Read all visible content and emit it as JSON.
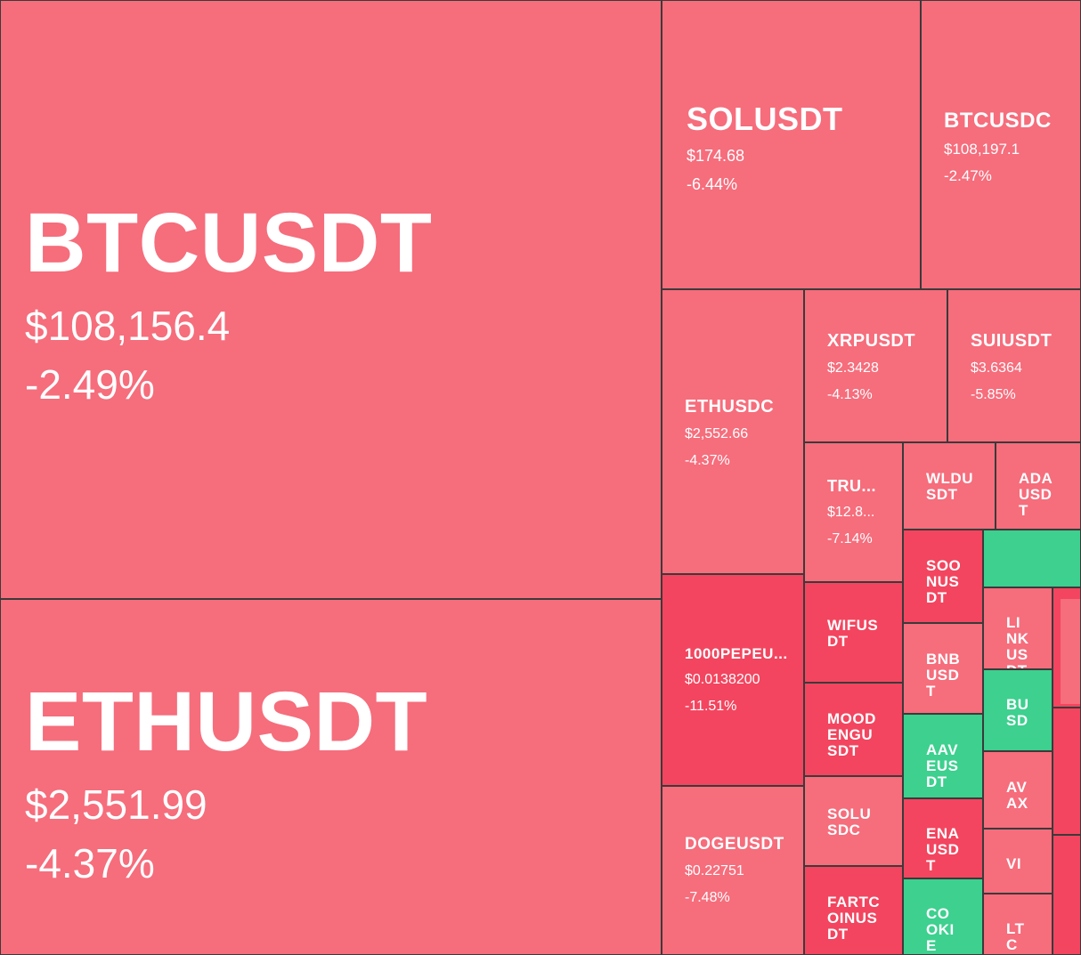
{
  "tiles": [
    {
      "symbol": "BTCUSDT",
      "price": "$108,156.4",
      "change": "-2.49%",
      "color": "#f66d7c"
    },
    {
      "symbol": "ETHUSDT",
      "price": "$2,551.99",
      "change": "-4.37%",
      "color": "#f66d7c"
    },
    {
      "symbol": "SOLUSDT",
      "price": "$174.68",
      "change": "-6.44%",
      "color": "#f66d7c"
    },
    {
      "symbol": "BTCUSDC",
      "price": "$108,197.1",
      "change": "-2.47%",
      "color": "#f66d7c"
    },
    {
      "symbol": "ETHUSDC",
      "price": "$2,552.66",
      "change": "-4.37%",
      "color": "#f66d7c"
    },
    {
      "symbol": "XRPUSDT",
      "price": "$2.3428",
      "change": "-4.13%",
      "color": "#f66d7c"
    },
    {
      "symbol": "SUIUSDT",
      "price": "$3.6364",
      "change": "-5.85%",
      "color": "#f66d7c"
    },
    {
      "symbol": "TRU...",
      "price": "$12.8...",
      "change": "-7.14%",
      "color": "#f66d7c"
    },
    {
      "symbol": "WLDUSDT",
      "color": "#f66d7c"
    },
    {
      "symbol": "ADAUSDT",
      "color": "#f66d7c"
    },
    {
      "symbol": "1000PEPEU...",
      "price": "$0.0138200",
      "change": "-11.51%",
      "color": "#f3455f"
    },
    {
      "symbol": "DOGEUSDT",
      "price": "$0.22751",
      "change": "-7.48%",
      "color": "#f66d7c"
    },
    {
      "symbol": "WIFUSDT",
      "color": "#f3455f"
    },
    {
      "symbol": "MOODENGUSDT",
      "color": "#f3455f"
    },
    {
      "symbol": "SOLUSDC",
      "color": "#f66d7c"
    },
    {
      "symbol": "FARTCOINUSDT",
      "color": "#f3455f"
    },
    {
      "symbol": "SOONUSDT",
      "color": "#f3455f"
    },
    {
      "color": "#3dd08f"
    },
    {
      "symbol": "BNBUSDT",
      "color": "#f66d7c"
    },
    {
      "symbol": "LINKUSDT",
      "color": "#f66d7c"
    },
    {
      "color": "#f3455f"
    },
    {
      "symbol": "AAVEUSDT",
      "color": "#3dd08f"
    },
    {
      "symbol": "BUSD",
      "color": "#3dd08f"
    },
    {
      "symbol": "ENAUSDT",
      "color": "#f3455f"
    },
    {
      "symbol": "AVAX",
      "color": "#f66d7c"
    },
    {
      "color": "#f3455f"
    },
    {
      "symbol": "COOKIE",
      "color": "#3dd08f"
    },
    {
      "symbol": "VI",
      "color": "#f66d7c"
    },
    {
      "symbol": "LTC",
      "color": "#f66d7c"
    },
    {
      "color": "#f3455f"
    }
  ]
}
